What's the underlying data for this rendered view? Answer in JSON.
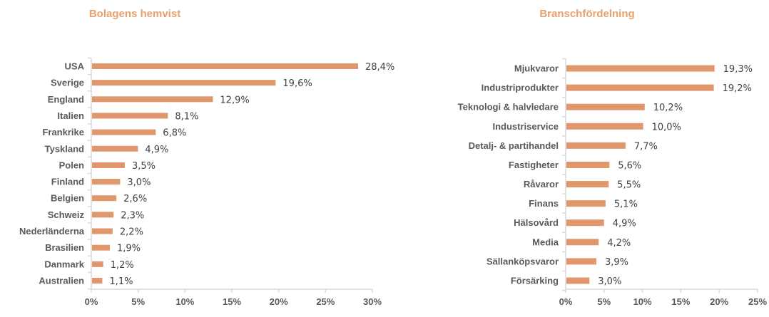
{
  "chart_data": [
    {
      "type": "bar",
      "orientation": "horizontal",
      "title": "Bolagens hemvist",
      "categories": [
        "USA",
        "Sverige",
        "England",
        "Italien",
        "Frankrike",
        "Tyskland",
        "Polen",
        "Finland",
        "Belgien",
        "Schweiz",
        "Nederländerna",
        "Brasilien",
        "Danmark",
        "Australien"
      ],
      "values": [
        28.4,
        19.6,
        12.9,
        8.1,
        6.8,
        4.9,
        3.5,
        3.0,
        2.6,
        2.3,
        2.2,
        1.9,
        1.2,
        1.1
      ],
      "data_labels": [
        "28,4%",
        "19,6%",
        "12,9%",
        "8,1%",
        "6,8%",
        "4,9%",
        "3,5%",
        "3,0%",
        "2,6%",
        "2,3%",
        "2,2%",
        "1,9%",
        "1,2%",
        "1,1%"
      ],
      "xticks": [
        "0%",
        "5%",
        "10%",
        "15%",
        "20%",
        "25%",
        "30%"
      ],
      "xlim": [
        0,
        30
      ],
      "xlabel": "",
      "ylabel": "",
      "grid": false,
      "color": "#E0976B"
    },
    {
      "type": "bar",
      "orientation": "horizontal",
      "title": "Branschfördelning",
      "categories": [
        "Mjukvaror",
        "Industriprodukter",
        "Teknologi & halvledare",
        "Industriservice",
        "Detalj- & partihandel",
        "Fastigheter",
        "Råvaror",
        "Finans",
        "Hälsovård",
        "Media",
        "Sällanköpsvaror",
        "Försärking"
      ],
      "values": [
        19.3,
        19.2,
        10.2,
        10.0,
        7.7,
        5.6,
        5.5,
        5.1,
        4.9,
        4.2,
        3.9,
        3.0
      ],
      "data_labels": [
        "19,3%",
        "19,2%",
        "10,2%",
        "10,0%",
        "7,7%",
        "5,6%",
        "5,5%",
        "5,1%",
        "4,9%",
        "4,2%",
        "3,9%",
        "3,0%"
      ],
      "xticks": [
        "0%",
        "5%",
        "10%",
        "15%",
        "20%",
        "25%"
      ],
      "xlim": [
        0,
        25
      ],
      "xlabel": "",
      "ylabel": "",
      "grid": false,
      "color": "#E0976B"
    }
  ]
}
